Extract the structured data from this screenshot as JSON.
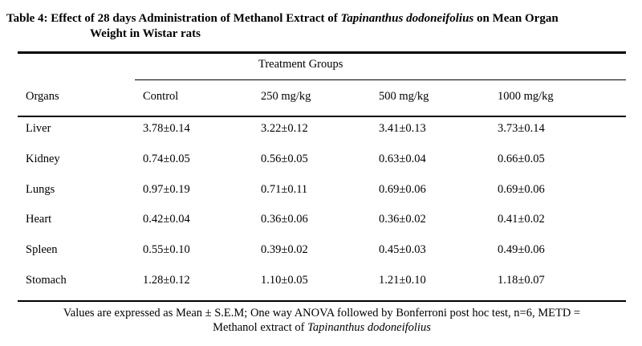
{
  "title": {
    "prefix": "Table 4: Effect of 28 days Administration of Methanol Extract of ",
    "species": "Tapinanthus dodoneifolius",
    "suffix": " on Mean Organ",
    "line2": "Weight in Wistar rats"
  },
  "table": {
    "group_header": "Treatment Groups",
    "columns": [
      "Organs",
      "Control",
      "250 mg/kg",
      "500 mg/kg",
      "1000 mg/kg"
    ],
    "rows": [
      [
        "Liver",
        "3.78±0.14",
        "3.22±0.12",
        "3.41±0.13",
        "3.73±0.14"
      ],
      [
        "Kidney",
        "0.74±0.05",
        "0.56±0.05",
        "0.63±0.04",
        "0.66±0.05"
      ],
      [
        "Lungs",
        "0.97±0.19",
        "0.71±0.11",
        "0.69±0.06",
        "0.69±0.06"
      ],
      [
        "Heart",
        "0.42±0.04",
        "0.36±0.06",
        "0.36±0.02",
        "0.41±0.02"
      ],
      [
        "Spleen",
        "0.55±0.10",
        "0.39±0.02",
        "0.45±0.03",
        "0.49±0.06"
      ],
      [
        "Stomach",
        "1.28±0.12",
        "1.10±0.05",
        "1.21±0.10",
        "1.18±0.07"
      ]
    ]
  },
  "footnote": {
    "line1": "Values are expressed as Mean ± S.E.M; One way ANOVA followed by Bonferroni post hoc test, n=6, METD =",
    "line2_prefix": "Methanol extract of ",
    "line2_species": "Tapinanthus dodoneifolius"
  }
}
